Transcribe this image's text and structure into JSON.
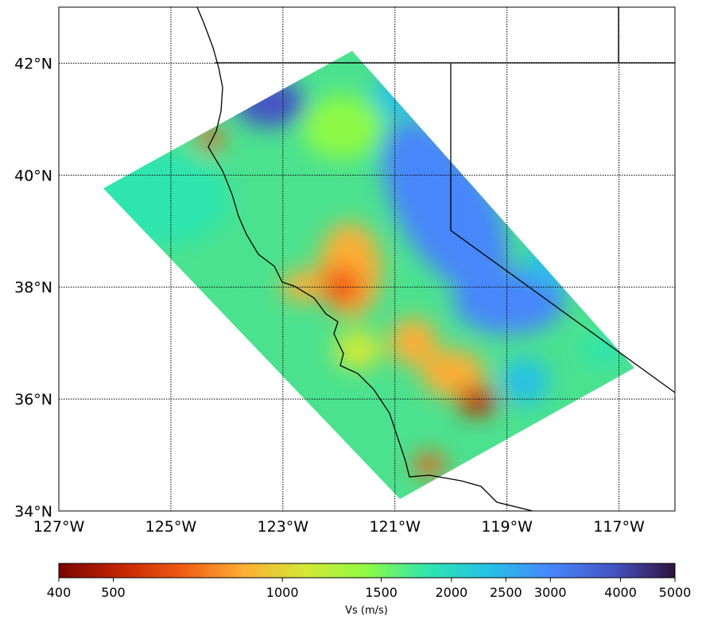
{
  "map": {
    "xlim": [
      -127,
      -116
    ],
    "ylim": [
      34,
      43
    ],
    "xticks": [
      {
        "value": -127,
        "label": "127°W"
      },
      {
        "value": -125,
        "label": "125°W"
      },
      {
        "value": -123,
        "label": "123°W"
      },
      {
        "value": -121,
        "label": "121°W"
      },
      {
        "value": -119,
        "label": "119°W"
      },
      {
        "value": -117,
        "label": "117°W"
      }
    ],
    "yticks": [
      {
        "value": 34,
        "label": "34°N"
      },
      {
        "value": 36,
        "label": "36°N"
      },
      {
        "value": 38,
        "label": "38°N"
      },
      {
        "value": 40,
        "label": "40°N"
      },
      {
        "value": 42,
        "label": "42°N"
      }
    ],
    "grid": true
  },
  "colorbar": {
    "label": "Vs (m/s)",
    "lim": [
      400,
      5000
    ],
    "scale": "log",
    "ticks": [
      400,
      500,
      1000,
      1500,
      2000,
      2500,
      3000,
      4000,
      5000
    ],
    "colors": [
      "#7a0403",
      "#c42503",
      "#f05b12",
      "#fdae35",
      "#d2e935",
      "#8efa45",
      "#2ee5ae",
      "#25c0e7",
      "#4686fb",
      "#4454c4",
      "#30123b"
    ]
  }
}
